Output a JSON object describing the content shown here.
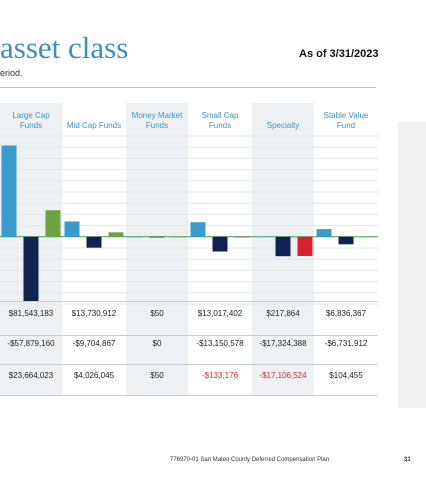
{
  "title": "asset class",
  "subtitle": "eriod.",
  "as_of": "As of 3/31/2023",
  "columns": [
    {
      "label": [
        "Large Cap",
        "Funds"
      ]
    },
    {
      "label": [
        "Mid Cap Funds"
      ]
    },
    {
      "label": [
        "Money Market",
        "Funds"
      ]
    },
    {
      "label": [
        "Small Cap",
        "Funds"
      ]
    },
    {
      "label": [
        "Specialty"
      ]
    },
    {
      "label": [
        "Stable Value",
        "Fund"
      ]
    }
  ],
  "rows": [
    [
      "$81,543,183",
      "$13,730,912",
      "$50",
      "$13,017,402",
      "$217,864",
      "$6,836,367"
    ],
    [
      "-$57,879,160",
      "-$9,704,867",
      "$0",
      "-$13,150,578",
      "-$17,324,388",
      "-$6,731,912"
    ],
    [
      "$23,664,023",
      "$4,026,045",
      "$50",
      "-$133,176",
      "-$17,106,524",
      "$104,455"
    ]
  ],
  "negative_cells": [
    [
      2,
      3
    ],
    [
      2,
      4
    ]
  ],
  "chart_data": {
    "type": "bar",
    "categories": [
      "Large Cap Funds",
      "Mid Cap Funds",
      "Money Market Funds",
      "Small Cap Funds",
      "Specialty",
      "Stable Value Fund"
    ],
    "series": [
      {
        "values": [
          81543183,
          13730912,
          50,
          13017402,
          217864,
          6836367
        ]
      },
      {
        "values": [
          -57879160,
          -9704867,
          0,
          -13150578,
          -17324388,
          -6731912
        ]
      },
      {
        "values": [
          23664023,
          4026045,
          50,
          -133176,
          -17106524,
          104455
        ]
      }
    ],
    "colors": [
      "#3a9bcd",
      "#0f2250",
      "#6ba343"
    ],
    "negative_color": "#d91f33",
    "ylim": [
      -60000000,
      90000000
    ]
  },
  "footer": "776970-01 San Mateo County Deferred Compensation Plan",
  "page_number": "31"
}
